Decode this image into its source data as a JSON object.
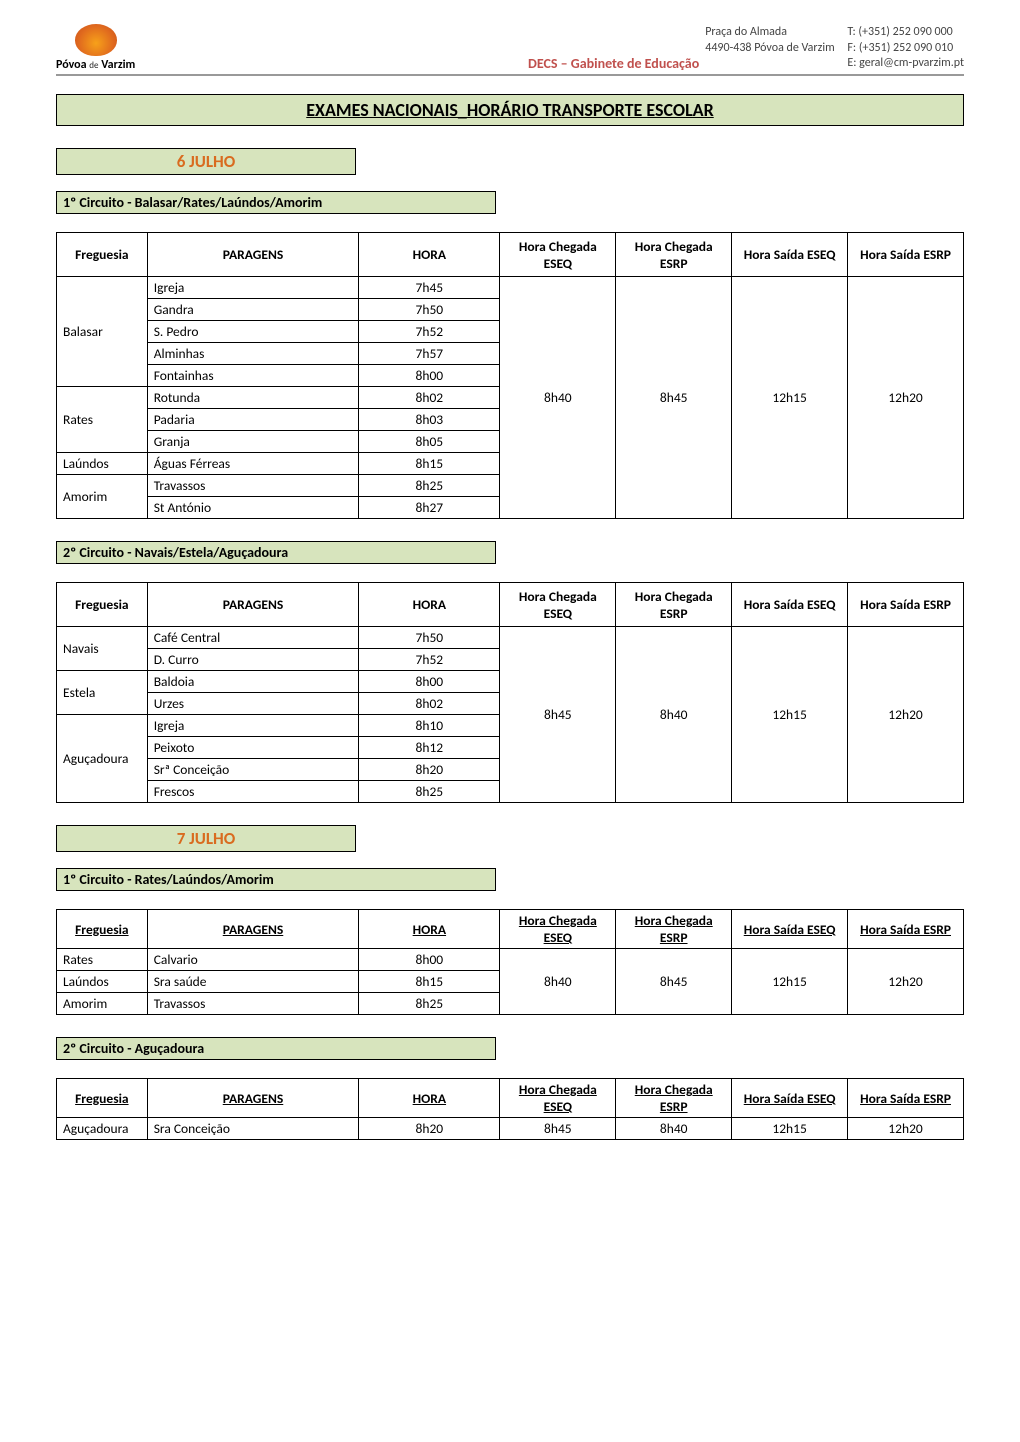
{
  "header": {
    "logo_text_1": "Póvoa",
    "logo_text_2": "de",
    "logo_text_3": "Varzim",
    "dept": "DECS – Gabinete de Educação",
    "addr_line1": "Praça do Almada",
    "addr_line2": "4490-438 Póvoa de Varzim",
    "contact_t": "T: (+351) 252 090 000",
    "contact_f": "F: (+351) 252 090 010",
    "contact_e": "E: geral@cm-pvarzim.pt"
  },
  "title": "EXAMES NACIONAIS_HORÁRIO TRANSPORTE ESCOLAR",
  "columns": {
    "freguesia": "Freguesia",
    "paragens": "PARAGENS",
    "hora": "HORA",
    "hc_eseq": "Hora Chegada ESEQ",
    "hc_esrp": "Hora Chegada ESRP",
    "hs_eseq": "Hora Saída ESEQ",
    "hs_esrp": "Hora Saída ESRP"
  },
  "day1": {
    "date_label": "6 JULHO",
    "circuit1": {
      "label": "1º Circuito - Balasar/Rates/Laúndos/Amorim",
      "merged": {
        "hc_eseq": "8h40",
        "hc_esrp": "8h45",
        "hs_eseq": "12h15",
        "hs_esrp": "12h20"
      },
      "groups": [
        {
          "freguesia": "Balasar",
          "stops": [
            {
              "p": "Igreja",
              "h": "7h45"
            },
            {
              "p": "Gandra",
              "h": "7h50"
            },
            {
              "p": "S. Pedro",
              "h": "7h52"
            },
            {
              "p": "Alminhas",
              "h": "7h57"
            },
            {
              "p": "Fontainhas",
              "h": "8h00"
            }
          ]
        },
        {
          "freguesia": "Rates",
          "stops": [
            {
              "p": "Rotunda",
              "h": "8h02"
            },
            {
              "p": "Padaria",
              "h": "8h03"
            },
            {
              "p": "Granja",
              "h": "8h05"
            }
          ]
        },
        {
          "freguesia": "Laúndos",
          "stops": [
            {
              "p": "Águas Férreas",
              "h": "8h15"
            }
          ]
        },
        {
          "freguesia": "Amorim",
          "stops": [
            {
              "p": "Travassos",
              "h": "8h25"
            },
            {
              "p": "St António",
              "h": "8h27"
            }
          ]
        }
      ]
    },
    "circuit2": {
      "label": "2º Circuito - Navais/Estela/Aguçadoura",
      "merged": {
        "hc_eseq": "8h45",
        "hc_esrp": "8h40",
        "hs_eseq": "12h15",
        "hs_esrp": "12h20"
      },
      "groups": [
        {
          "freguesia": "Navais",
          "stops": [
            {
              "p": "Café Central",
              "h": "7h50"
            },
            {
              "p": "D. Curro",
              "h": "7h52"
            }
          ]
        },
        {
          "freguesia": "Estela",
          "stops": [
            {
              "p": "Baldoia",
              "h": "8h00"
            },
            {
              "p": "Urzes",
              "h": "8h02"
            }
          ]
        },
        {
          "freguesia": "Aguçadoura",
          "stops": [
            {
              "p": "Igreja",
              "h": "8h10"
            },
            {
              "p": "Peixoto",
              "h": "8h12"
            },
            {
              "p": "Srª Conceição",
              "h": "8h20"
            },
            {
              "p": "Frescos",
              "h": "8h25"
            }
          ]
        }
      ]
    }
  },
  "day2": {
    "date_label": "7 JULHO",
    "circuit1": {
      "label": "1º Circuito - Rates/Laúndos/Amorim",
      "merged": {
        "hc_eseq": "8h40",
        "hc_esrp": "8h45",
        "hs_eseq": "12h15",
        "hs_esrp": "12h20"
      },
      "groups": [
        {
          "freguesia": "Rates",
          "stops": [
            {
              "p": "Calvario",
              "h": "8h00"
            }
          ]
        },
        {
          "freguesia": "Laúndos",
          "stops": [
            {
              "p": "Sra saúde",
              "h": "8h15"
            }
          ]
        },
        {
          "freguesia": "Amorim",
          "stops": [
            {
              "p": "Travassos",
              "h": "8h25"
            }
          ]
        }
      ]
    },
    "circuit2": {
      "label": "2º Circuito - Aguçadoura",
      "merged": {
        "hc_eseq": "8h45",
        "hc_esrp": "8h40",
        "hs_eseq": "12h15",
        "hs_esrp": "12h20"
      },
      "groups": [
        {
          "freguesia": "Aguçadoura",
          "stops": [
            {
              "p": "Sra Conceição",
              "h": "8h20"
            }
          ]
        }
      ]
    }
  }
}
